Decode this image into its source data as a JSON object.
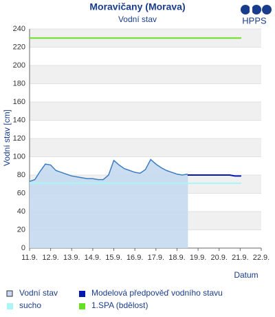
{
  "chart_data": {
    "type": "line",
    "title": "Moravičany (Morava)",
    "subtitle": "Vodní stav",
    "logo": "HPPS",
    "y_label": "Vodní stav [cm]",
    "x_label": "Datum",
    "xlim": [
      11,
      22
    ],
    "xticks": [
      {
        "value": 11,
        "label": "11.9."
      },
      {
        "value": 12,
        "label": "12.9."
      },
      {
        "value": 13,
        "label": "13.9."
      },
      {
        "value": 14,
        "label": "14.9."
      },
      {
        "value": 15,
        "label": "15.9."
      },
      {
        "value": 16,
        "label": "16.9."
      },
      {
        "value": 17,
        "label": "17.9."
      },
      {
        "value": 18,
        "label": "18.9."
      },
      {
        "value": 19,
        "label": "19.9."
      },
      {
        "value": 20,
        "label": "20.9."
      },
      {
        "value": 21,
        "label": "21.9."
      },
      {
        "value": 22,
        "label": "22.9."
      }
    ],
    "ylim": [
      0,
      240
    ],
    "yticks": [
      0,
      20,
      40,
      60,
      80,
      100,
      120,
      140,
      160,
      180,
      200,
      220,
      240
    ],
    "grid": true,
    "legend": "bottom",
    "series": [
      {
        "name": "Vodní stav",
        "color": "#3a7dc0",
        "fill": "#c5daf0",
        "style": "area",
        "x": [
          11,
          11.25,
          11.5,
          11.75,
          12,
          12.25,
          12.5,
          12.75,
          13,
          13.25,
          13.5,
          13.75,
          14,
          14.25,
          14.5,
          14.75,
          15,
          15.25,
          15.5,
          15.75,
          16,
          16.25,
          16.5,
          16.75,
          17,
          17.25,
          17.5,
          17.75,
          18,
          18.25,
          18.5
        ],
        "values": [
          73,
          75,
          84,
          92,
          91,
          85,
          83,
          81,
          79,
          78,
          77,
          76,
          76,
          75,
          75,
          80,
          96,
          91,
          87,
          85,
          83,
          82,
          86,
          97,
          92,
          88,
          85,
          83,
          81,
          80,
          81
        ]
      },
      {
        "name": "Modelová předpověď vodního stavu",
        "color": "#0018b0",
        "style": "line",
        "x": [
          18.5,
          18.75,
          19,
          19.25,
          19.5,
          19.75,
          20,
          20.25,
          20.5,
          20.75,
          21.05
        ],
        "values": [
          80,
          80,
          80,
          80,
          80,
          80,
          80,
          80,
          80,
          79,
          79
        ]
      },
      {
        "name": "sucho",
        "color": "#aaf5f5",
        "style": "line",
        "x": [
          11,
          21.05
        ],
        "values": [
          71,
          71
        ]
      },
      {
        "name": "1.SPA (bdělost)",
        "color": "#66e020",
        "style": "line",
        "x": [
          11,
          21.05
        ],
        "values": [
          230,
          230
        ]
      }
    ]
  }
}
